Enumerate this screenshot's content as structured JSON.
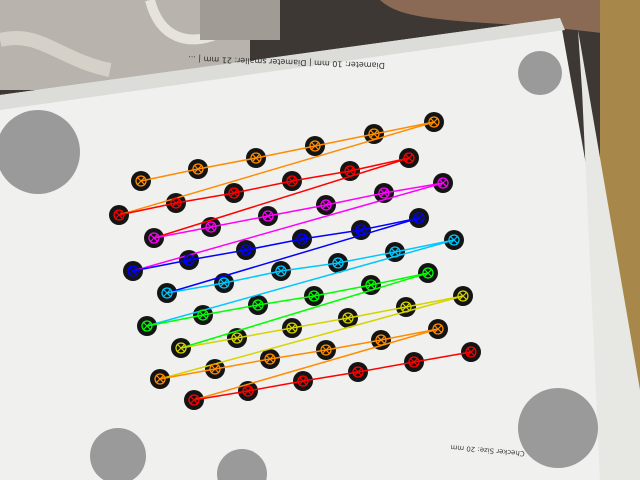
{
  "scene": {
    "subject": "Photo of a printed asymmetric circle-grid calibration target with detected centers and colored row-connecting lines",
    "text_top": "Diameter: 10 mm | Diameter smaller: 21 mm | ...",
    "text_bottom": "Checker Size: 20 mm",
    "colors": {
      "background": "#3a3633",
      "board": "#f2f2f2",
      "dot": "#111111",
      "knob": "#9c9c9c"
    }
  },
  "rows": [
    {
      "color": "#ff8c00"
    },
    {
      "color": "#ff0000"
    },
    {
      "color": "#ff00ff"
    },
    {
      "color": "#0000ff"
    },
    {
      "color": "#00c8ff"
    },
    {
      "color": "#00ff00"
    },
    {
      "color": "#d4d400"
    },
    {
      "color": "#ff8c00"
    },
    {
      "color": "#ff0000"
    }
  ]
}
